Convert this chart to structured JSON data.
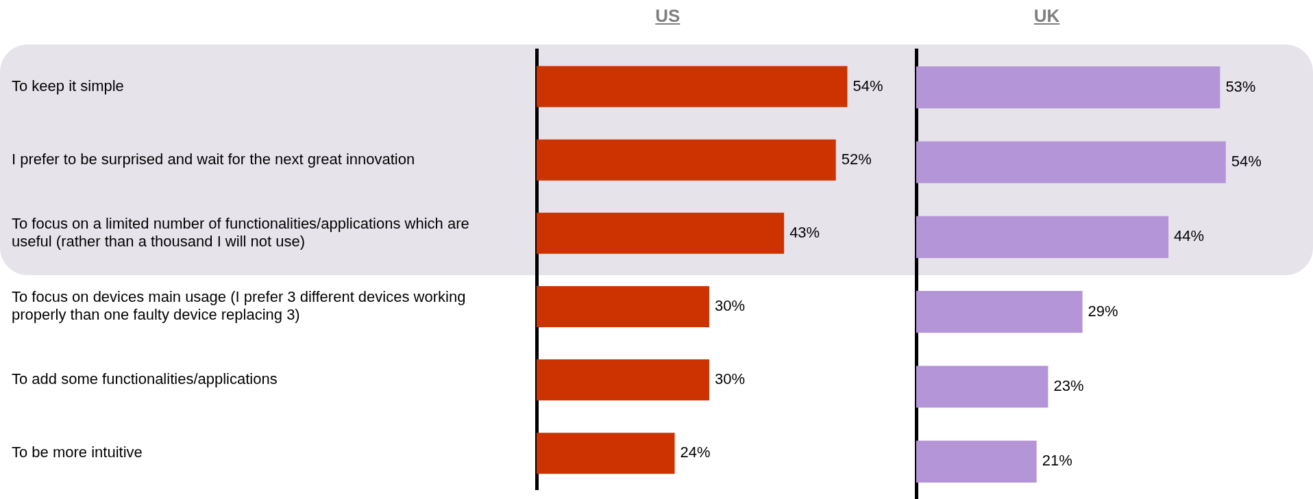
{
  "chart_data": [
    {
      "type": "bar",
      "orientation": "horizontal",
      "title": "US",
      "categories": [
        "To keep it simple",
        "I prefer to be surprised and wait for the next great innovation",
        "To focus on a limited number of functionalities/applications which are useful (rather than a thousand I will not use)",
        "To focus on devices main usage (I prefer 3 different devices working properly than one faulty device replacing 3)",
        "To add some functionalities/applications",
        "To be more intuitive"
      ],
      "values": [
        54,
        52,
        43,
        30,
        30,
        24
      ],
      "value_labels": [
        "54%",
        "52%",
        "43%",
        "30%",
        "30%",
        "24%"
      ],
      "color": "#cc3300",
      "legend": false,
      "tick_labels": "y",
      "bands": [
        {
          "axis": "y",
          "from": "To keep it simple",
          "to": "To focus on a limited number of functionalities/applications which are useful (rather than a thousand I will not use)",
          "color": "#e6e3ea"
        }
      ]
    },
    {
      "type": "bar",
      "orientation": "horizontal",
      "title": "UK",
      "categories": [
        null,
        null,
        null,
        null,
        null,
        null
      ],
      "values": [
        53,
        54,
        44,
        29,
        23,
        21
      ],
      "value_labels": [
        "53%",
        "54%",
        "44%",
        "29%",
        "23%",
        "21%"
      ],
      "color": "#b495d8",
      "legend": false,
      "tick_labels": false
    }
  ]
}
